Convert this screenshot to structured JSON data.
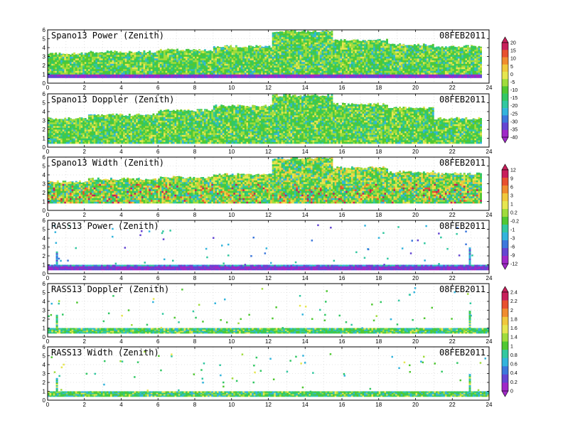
{
  "chart_data": [
    {
      "type": "heatmap",
      "title": "Spano13 Power (Zenith)",
      "date": "08FEB2011",
      "xlim": [
        0,
        24
      ],
      "ylim": [
        0,
        6
      ],
      "x_ticks": [
        0,
        2,
        4,
        6,
        8,
        10,
        12,
        14,
        16,
        18,
        20,
        22,
        24
      ],
      "y_ticks": [
        0,
        1,
        2,
        3,
        4,
        5,
        6
      ],
      "colorbar": {
        "labels": [
          "20",
          "15",
          "10",
          "5",
          "0",
          "-5",
          "-10",
          "-15",
          "-20",
          "-25",
          "-30",
          "-35",
          "-40"
        ],
        "colors": [
          "#c81e5a",
          "#e8502e",
          "#f08c2e",
          "#f0c83c",
          "#e6e650",
          "#a0dc3c",
          "#50c832",
          "#32c864",
          "#32c8a0",
          "#32b4dc",
          "#3c78dc",
          "#6446d2",
          "#a028c8"
        ]
      },
      "data_description_visible_only_as_colors": true,
      "bands": [
        {
          "start": 0.0,
          "end": 2.2,
          "top": 3.5,
          "bottom": 0.6
        },
        {
          "start": 2.2,
          "end": 6.0,
          "top": 3.7,
          "bottom": 0.6
        },
        {
          "start": 6.0,
          "end": 9.0,
          "top": 3.9,
          "bottom": 0.6
        },
        {
          "start": 9.0,
          "end": 12.2,
          "top": 4.3,
          "bottom": 0.6
        },
        {
          "start": 12.2,
          "end": 15.5,
          "top": 6.0,
          "bottom": 0.6
        },
        {
          "start": 15.5,
          "end": 18.5,
          "top": 5.0,
          "bottom": 0.6
        },
        {
          "start": 18.5,
          "end": 21.0,
          "top": 4.5,
          "bottom": 0.6
        },
        {
          "start": 21.0,
          "end": 23.6,
          "top": 4.3,
          "bottom": 0.6
        }
      ]
    },
    {
      "type": "heatmap",
      "title": "Spano13 Doppler (Zenith)",
      "date": "08FEB2011",
      "xlim": [
        0,
        24
      ],
      "ylim": [
        0,
        6
      ],
      "x_ticks": [
        0,
        2,
        4,
        6,
        8,
        10,
        12,
        14,
        16,
        18,
        20,
        22,
        24
      ],
      "y_ticks": [
        0,
        1,
        2,
        3,
        4,
        5,
        6
      ],
      "bands": [
        {
          "start": 0.0,
          "end": 2.2,
          "top": 3.4,
          "bottom": 0.4
        },
        {
          "start": 2.2,
          "end": 6.0,
          "top": 3.8,
          "bottom": 0.4
        },
        {
          "start": 6.0,
          "end": 9.0,
          "top": 4.3,
          "bottom": 0.4
        },
        {
          "start": 9.0,
          "end": 12.2,
          "top": 4.8,
          "bottom": 0.4
        },
        {
          "start": 12.2,
          "end": 15.5,
          "top": 6.0,
          "bottom": 0.4
        },
        {
          "start": 15.5,
          "end": 18.5,
          "top": 5.0,
          "bottom": 0.4
        },
        {
          "start": 18.5,
          "end": 21.0,
          "top": 4.6,
          "bottom": 0.4
        },
        {
          "start": 21.0,
          "end": 23.6,
          "top": 3.4,
          "bottom": 0.4
        }
      ]
    },
    {
      "type": "heatmap",
      "title": "Spano13 Width (Zenith)",
      "date": "08FEB2011",
      "xlim": [
        0,
        24
      ],
      "ylim": [
        0,
        6
      ],
      "x_ticks": [
        0,
        2,
        4,
        6,
        8,
        10,
        12,
        14,
        16,
        18,
        20,
        22,
        24
      ],
      "y_ticks": [
        0,
        1,
        2,
        3,
        4,
        5,
        6
      ],
      "colorbar": {
        "labels": [
          "12",
          "9",
          "6",
          "3",
          "1",
          "0.2",
          "-0.2",
          "-1",
          "-3",
          "-6",
          "-9",
          "-12"
        ],
        "colors": [
          "#c81e5a",
          "#e8502e",
          "#f08c2e",
          "#f0c83c",
          "#e6e650",
          "#a0dc3c",
          "#50c832",
          "#32c8a0",
          "#32b4dc",
          "#3c78dc",
          "#6446d2",
          "#a028c8"
        ]
      },
      "bands": [
        {
          "start": 0.0,
          "end": 2.2,
          "top": 3.4,
          "bottom": 0.8
        },
        {
          "start": 2.2,
          "end": 6.0,
          "top": 3.7,
          "bottom": 0.8
        },
        {
          "start": 6.0,
          "end": 9.0,
          "top": 3.9,
          "bottom": 0.8
        },
        {
          "start": 9.0,
          "end": 12.2,
          "top": 4.2,
          "bottom": 0.8
        },
        {
          "start": 12.2,
          "end": 15.5,
          "top": 6.0,
          "bottom": 0.8
        },
        {
          "start": 15.5,
          "end": 18.5,
          "top": 5.0,
          "bottom": 0.8
        },
        {
          "start": 18.5,
          "end": 21.0,
          "top": 4.5,
          "bottom": 0.8
        },
        {
          "start": 21.0,
          "end": 23.6,
          "top": 4.3,
          "bottom": 0.8
        }
      ]
    },
    {
      "type": "heatmap",
      "title": "RASS13 Power (Zenith)",
      "date": "08FEB2011",
      "xlim": [
        0,
        24
      ],
      "ylim": [
        0,
        6
      ],
      "x_ticks": [
        0,
        2,
        4,
        6,
        8,
        10,
        12,
        14,
        16,
        18,
        20,
        22,
        24
      ],
      "y_ticks": [
        0,
        1,
        2,
        3,
        4,
        5,
        6
      ],
      "bands": [
        {
          "start": 0.0,
          "end": 24.0,
          "top": 1.0,
          "bottom": 0.4
        }
      ]
    },
    {
      "type": "heatmap",
      "title": "RASS13 Doppler (Zenith)",
      "date": "08FEB2011",
      "xlim": [
        0,
        24
      ],
      "ylim": [
        0,
        6
      ],
      "x_ticks": [
        0,
        2,
        4,
        6,
        8,
        10,
        12,
        14,
        16,
        18,
        20,
        22,
        24
      ],
      "y_ticks": [
        0,
        1,
        2,
        3,
        4,
        5,
        6
      ],
      "colorbar": {
        "labels": [
          "2.4",
          "2.2",
          "2",
          "1.8",
          "1.6",
          "1.4",
          "1",
          "0.8",
          "0.6",
          "0.4",
          "0.2",
          "0"
        ],
        "colors": [
          "#c81e5a",
          "#e8502e",
          "#f08c2e",
          "#f0c83c",
          "#e6e650",
          "#a0dc3c",
          "#50c832",
          "#32c8a0",
          "#32b4dc",
          "#3c78dc",
          "#6446d2",
          "#a028c8"
        ]
      },
      "bands": [
        {
          "start": 0.0,
          "end": 24.0,
          "top": 1.0,
          "bottom": 0.4
        }
      ]
    },
    {
      "type": "heatmap",
      "title": "RASS13 Width (Zenith)",
      "date": "08FEB2011",
      "xlim": [
        0,
        24
      ],
      "ylim": [
        0,
        6
      ],
      "x_ticks": [
        0,
        2,
        4,
        6,
        8,
        10,
        12,
        14,
        16,
        18,
        20,
        22,
        24
      ],
      "y_ticks": [
        0,
        1,
        2,
        3,
        4,
        5,
        6
      ],
      "bands": [
        {
          "start": 0.0,
          "end": 24.0,
          "top": 1.0,
          "bottom": 0.4
        }
      ]
    }
  ]
}
